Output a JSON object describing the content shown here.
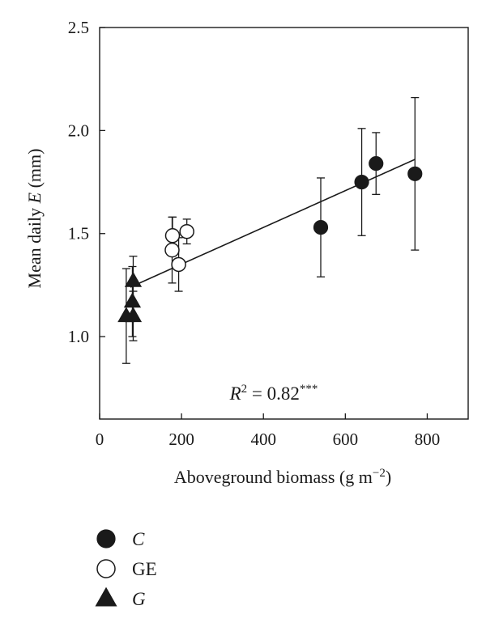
{
  "chart_data": {
    "type": "scatter",
    "xlabel": "Aboveground biomass (g m",
    "xlabel_sup": "−2",
    "xlabel_end": ")",
    "ylabel": "Mean daily ",
    "ylabel_italic": "E",
    "ylabel_end": " (mm)",
    "xlim": [
      0,
      900
    ],
    "ylim": [
      0.6,
      2.5
    ],
    "xticks": [
      0,
      200,
      400,
      600,
      800
    ],
    "yticks": [
      1.0,
      1.5,
      2.0,
      2.5
    ],
    "xtick_labels": [
      "0",
      "200",
      "400",
      "600",
      "800"
    ],
    "ytick_labels": [
      "1.0",
      "1.5",
      "2.0",
      "2.5"
    ],
    "annotation": {
      "r_label": "R",
      "r_sup": "2",
      "value": " = 0.82",
      "stars": "***"
    },
    "fit_line": {
      "x": [
        75,
        770
      ],
      "y": [
        1.24,
        1.86
      ]
    },
    "series": [
      {
        "name": "C",
        "marker": "filled-circle",
        "points": [
          {
            "x": 540,
            "y": 1.53,
            "err": 0.24
          },
          {
            "x": 640,
            "y": 1.75,
            "err": 0.26
          },
          {
            "x": 675,
            "y": 1.84,
            "err": 0.15
          },
          {
            "x": 770,
            "y": 1.79,
            "err": 0.37
          }
        ]
      },
      {
        "name": "GE",
        "marker": "open-circle",
        "points": [
          {
            "x": 178,
            "y": 1.49,
            "err": 0.09
          },
          {
            "x": 177,
            "y": 1.42,
            "err": 0.16
          },
          {
            "x": 193,
            "y": 1.35,
            "err": 0.13
          },
          {
            "x": 213,
            "y": 1.51,
            "err": 0.06
          }
        ]
      },
      {
        "name": "G",
        "marker": "filled-triangle",
        "points": [
          {
            "x": 65,
            "y": 1.1,
            "err": 0.23
          },
          {
            "x": 82,
            "y": 1.27,
            "err": 0.12
          },
          {
            "x": 80,
            "y": 1.17,
            "err": 0.17
          },
          {
            "x": 82,
            "y": 1.1,
            "err": 0.12
          }
        ]
      }
    ],
    "legend": [
      {
        "label": "C",
        "italic": true,
        "marker": "filled-circle"
      },
      {
        "label": "GE",
        "italic": false,
        "marker": "open-circle"
      },
      {
        "label": "G",
        "italic": true,
        "marker": "filled-triangle"
      }
    ],
    "legend_placement": "bottom-left",
    "grid": false
  },
  "colors": {
    "ink": "#1a1a1a",
    "background": "#ffffff"
  }
}
